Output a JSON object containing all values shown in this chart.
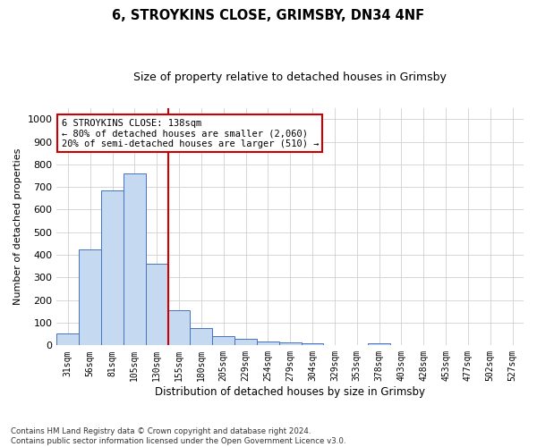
{
  "title": "6, STROYKINS CLOSE, GRIMSBY, DN34 4NF",
  "subtitle": "Size of property relative to detached houses in Grimsby",
  "xlabel": "Distribution of detached houses by size in Grimsby",
  "ylabel": "Number of detached properties",
  "bar_labels": [
    "31sqm",
    "56sqm",
    "81sqm",
    "105sqm",
    "130sqm",
    "155sqm",
    "180sqm",
    "205sqm",
    "229sqm",
    "254sqm",
    "279sqm",
    "304sqm",
    "329sqm",
    "353sqm",
    "378sqm",
    "403sqm",
    "428sqm",
    "453sqm",
    "477sqm",
    "502sqm",
    "527sqm"
  ],
  "bar_values": [
    52,
    425,
    685,
    760,
    360,
    155,
    75,
    40,
    28,
    18,
    12,
    8,
    0,
    0,
    9,
    0,
    0,
    0,
    0,
    0,
    0
  ],
  "bar_color": "#c5d9f1",
  "bar_edge_color": "#4472c4",
  "vline_x_index": 4,
  "vline_color": "#cc0000",
  "annotation_text": "6 STROYKINS CLOSE: 138sqm\n← 80% of detached houses are smaller (2,060)\n20% of semi-detached houses are larger (510) →",
  "annotation_box_color": "#ffffff",
  "annotation_box_edge": "#cc0000",
  "ylim": [
    0,
    1050
  ],
  "yticks": [
    0,
    100,
    200,
    300,
    400,
    500,
    600,
    700,
    800,
    900,
    1000
  ],
  "footnote": "Contains HM Land Registry data © Crown copyright and database right 2024.\nContains public sector information licensed under the Open Government Licence v3.0.",
  "background_color": "#ffffff",
  "grid_color": "#d0d0d0"
}
